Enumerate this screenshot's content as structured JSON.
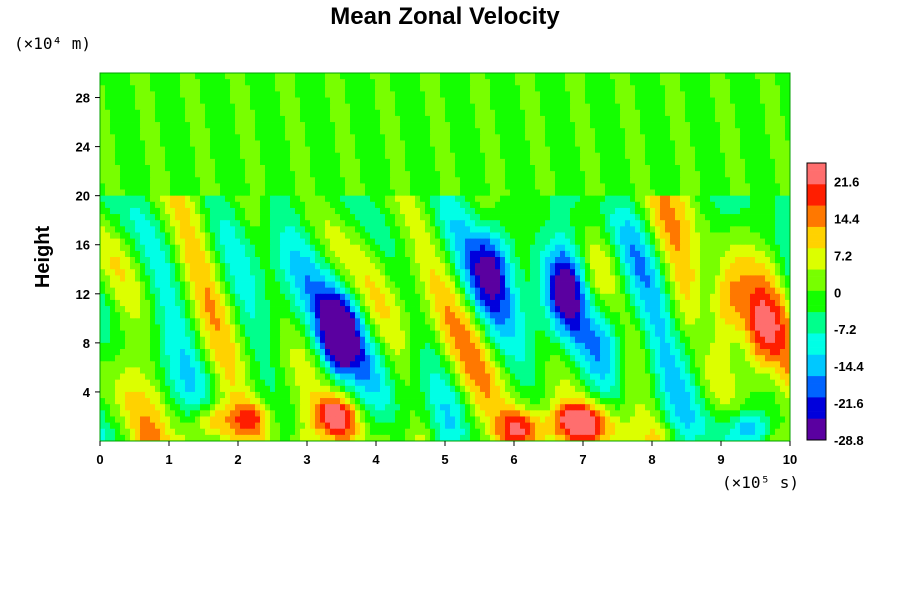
{
  "chart_data": {
    "type": "heatmap",
    "title": "Mean Zonal Velocity",
    "ylabel": "Height",
    "y_unit_label": "(×10⁴ m)",
    "x_unit_label": "(×10⁵ s)",
    "xlim": [
      0,
      10
    ],
    "ylim": [
      0,
      30
    ],
    "x_ticks": [
      "0",
      "1",
      "2",
      "3",
      "4",
      "5",
      "6",
      "7",
      "8",
      "9",
      "10"
    ],
    "y_ticks": [
      "4",
      "8",
      "12",
      "16",
      "20",
      "24",
      "28"
    ],
    "colorbar": {
      "min": -28.8,
      "max": 25.2,
      "ticks": [
        "21.6",
        "14.4",
        "7.2",
        "0",
        "-7.2",
        "-14.4",
        "-21.6",
        "-28.8"
      ],
      "colormap": [
        "#5a00a0",
        "#0000dc",
        "#0064ff",
        "#00c8ff",
        "#00ffe6",
        "#00ff8c",
        "#14ff00",
        "#78ff00",
        "#dcff00",
        "#ffd200",
        "#ff7800",
        "#ff1e00",
        "#ff6e6e"
      ]
    },
    "features": {
      "upper_layer_value": 0,
      "upper_layer_bottom": 20,
      "negative_cores": [
        {
          "x": 3.45,
          "y": 8.5,
          "value": -25
        },
        {
          "x": 5.7,
          "y": 14.5,
          "value": -16
        },
        {
          "x": 6.75,
          "y": 12.5,
          "value": -20
        },
        {
          "x": 7.45,
          "y": 9.5,
          "value": -14
        },
        {
          "x": 8.75,
          "y": 8.5,
          "value": -12
        },
        {
          "x": 9.4,
          "y": 1.0,
          "value": -16
        }
      ],
      "positive_cores": [
        {
          "x": 1.6,
          "y": 1.5,
          "value": 18
        },
        {
          "x": 2.2,
          "y": 1.7,
          "value": 16
        },
        {
          "x": 3.4,
          "y": 2.0,
          "value": 20
        },
        {
          "x": 6.1,
          "y": 1.0,
          "value": 19
        },
        {
          "x": 6.8,
          "y": 1.5,
          "value": 20
        },
        {
          "x": 7.2,
          "y": 1.5,
          "value": 15
        },
        {
          "x": 9.1,
          "y": 11.0,
          "value": 20
        },
        {
          "x": 9.55,
          "y": 8.5,
          "value": 18
        }
      ]
    }
  }
}
